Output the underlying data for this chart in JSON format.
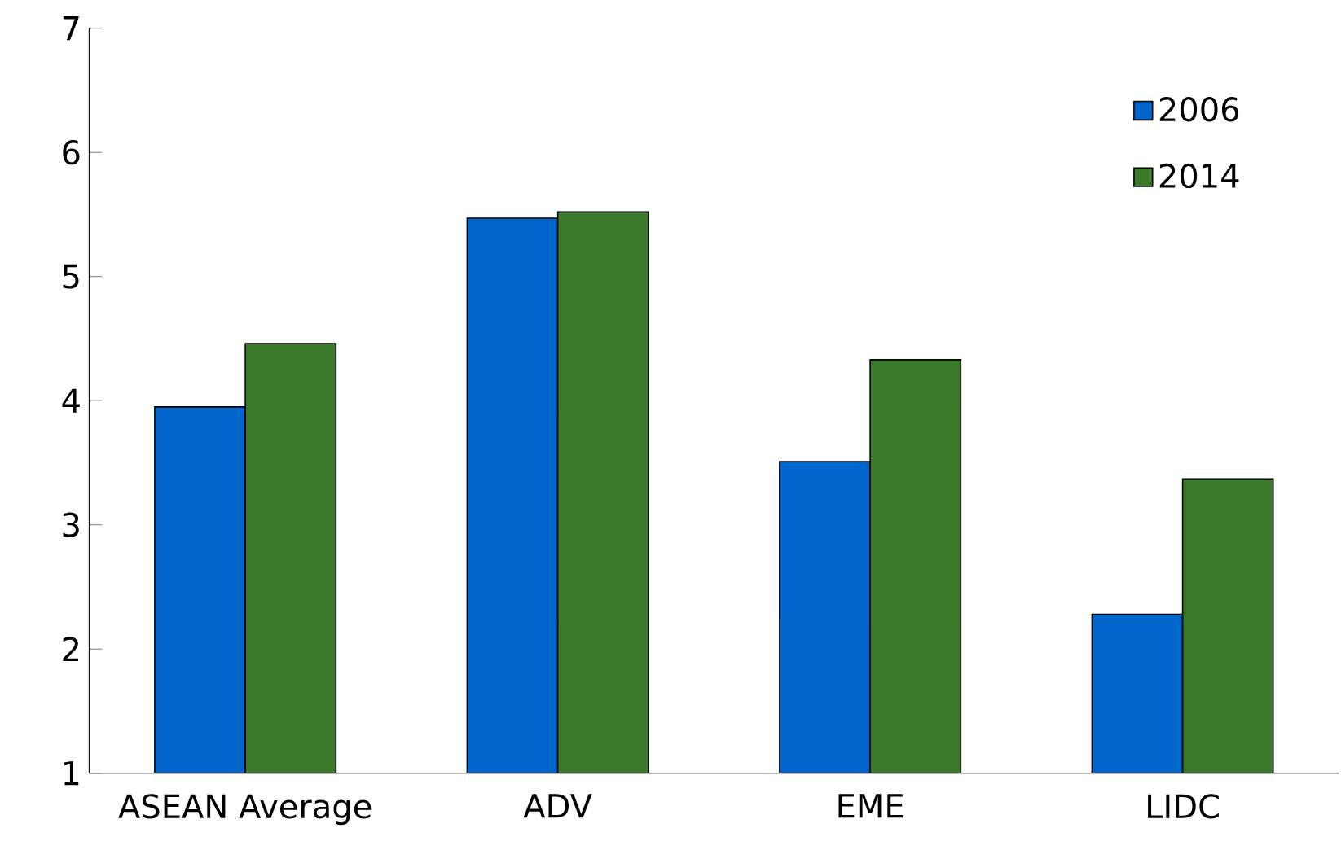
{
  "chart_data": {
    "type": "bar",
    "categories": [
      "ASEAN Average",
      "ADV",
      "EME",
      "LIDC"
    ],
    "series": [
      {
        "name": "2006",
        "color": "#0066cc",
        "values": [
          3.95,
          5.47,
          3.51,
          2.28
        ]
      },
      {
        "name": "2014",
        "color": "#3a7a2a",
        "values": [
          4.46,
          5.52,
          4.33,
          3.37
        ]
      }
    ],
    "ylim": [
      1,
      7
    ],
    "yticks": [
      1,
      2,
      3,
      4,
      5,
      6,
      7
    ],
    "grid": false,
    "legend": "top right"
  }
}
